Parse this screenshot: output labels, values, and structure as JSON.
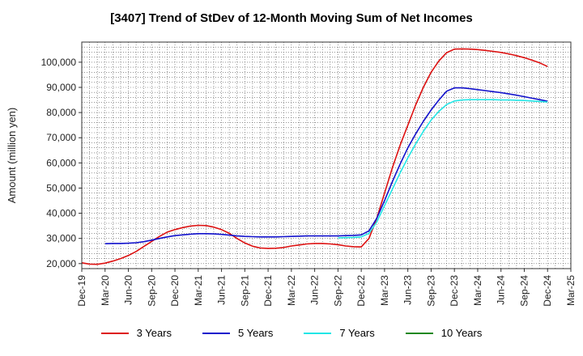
{
  "chart_data": {
    "type": "line",
    "title": "[3407]  Trend of StDev of 12-Month Moving Sum of Net Incomes",
    "xlabel": "",
    "ylabel": "Amount (million yen)",
    "x_ticks": [
      "Dec-19",
      "Mar-20",
      "Jun-20",
      "Sep-20",
      "Dec-20",
      "Mar-21",
      "Jun-21",
      "Sep-21",
      "Dec-21",
      "Mar-22",
      "Jun-22",
      "Sep-22",
      "Dec-22",
      "Mar-23",
      "Jun-23",
      "Sep-23",
      "Dec-23",
      "Mar-24",
      "Jun-24",
      "Sep-24",
      "Dec-24",
      "Mar-25"
    ],
    "y_ticks": [
      20000,
      30000,
      40000,
      50000,
      60000,
      70000,
      80000,
      90000,
      100000
    ],
    "y_tick_labels": [
      "20,000",
      "30,000",
      "40,000",
      "50,000",
      "60,000",
      "70,000",
      "80,000",
      "90,000",
      "100,000"
    ],
    "ylim": [
      18000,
      108000
    ],
    "grid": true,
    "legend_position": "bottom",
    "series": [
      {
        "name": "3 Years",
        "color": "#dd1111",
        "x": [
          "Dec-19",
          "Jan-20",
          "Feb-20",
          "Mar-20",
          "Apr-20",
          "May-20",
          "Jun-20",
          "Jul-20",
          "Aug-20",
          "Sep-20",
          "Oct-20",
          "Nov-20",
          "Dec-20",
          "Jan-21",
          "Feb-21",
          "Mar-21",
          "Apr-21",
          "May-21",
          "Jun-21",
          "Jul-21",
          "Aug-21",
          "Sep-21",
          "Oct-21",
          "Nov-21",
          "Dec-21",
          "Jan-22",
          "Feb-22",
          "Mar-22",
          "Apr-22",
          "May-22",
          "Jun-22",
          "Jul-22",
          "Aug-22",
          "Sep-22",
          "Oct-22",
          "Nov-22",
          "Dec-22",
          "Jan-23",
          "Feb-23",
          "Mar-23",
          "Apr-23",
          "May-23",
          "Jun-23",
          "Jul-23",
          "Aug-23",
          "Sep-23",
          "Oct-23",
          "Nov-23",
          "Dec-23",
          "Jan-24",
          "Feb-24",
          "Mar-24",
          "Apr-24",
          "May-24",
          "Jun-24",
          "Jul-24",
          "Aug-24",
          "Sep-24",
          "Oct-24",
          "Nov-24",
          "Dec-24"
        ],
        "values": [
          20300,
          19800,
          19700,
          20200,
          21000,
          22000,
          23200,
          24800,
          26800,
          28800,
          30800,
          32500,
          33500,
          34300,
          34900,
          35200,
          35100,
          34500,
          33500,
          32000,
          30000,
          28200,
          26900,
          26200,
          26000,
          26100,
          26400,
          27000,
          27400,
          27800,
          28000,
          28000,
          27800,
          27500,
          27000,
          26700,
          26600,
          30000,
          38000,
          48000,
          58000,
          67000,
          75000,
          83000,
          90000,
          96000,
          100500,
          103800,
          105200,
          105300,
          105200,
          105000,
          104700,
          104300,
          103900,
          103300,
          102600,
          101800,
          100800,
          99700,
          98300
        ]
      },
      {
        "name": "5 Years",
        "color": "#1111cc",
        "x": [
          "Mar-20",
          "Apr-20",
          "May-20",
          "Jun-20",
          "Jul-20",
          "Aug-20",
          "Sep-20",
          "Oct-20",
          "Nov-20",
          "Dec-20",
          "Jan-21",
          "Feb-21",
          "Mar-21",
          "Apr-21",
          "May-21",
          "Jun-21",
          "Jul-21",
          "Aug-21",
          "Sep-21",
          "Oct-21",
          "Nov-21",
          "Dec-21",
          "Jan-22",
          "Feb-22",
          "Mar-22",
          "Apr-22",
          "May-22",
          "Jun-22",
          "Jul-22",
          "Aug-22",
          "Sep-22",
          "Oct-22",
          "Nov-22",
          "Dec-22",
          "Jan-23",
          "Feb-23",
          "Mar-23",
          "Apr-23",
          "May-23",
          "Jun-23",
          "Jul-23",
          "Aug-23",
          "Sep-23",
          "Oct-23",
          "Nov-23",
          "Dec-23",
          "Jan-24",
          "Feb-24",
          "Mar-24",
          "Apr-24",
          "May-24",
          "Jun-24",
          "Jul-24",
          "Aug-24",
          "Sep-24",
          "Oct-24",
          "Nov-24",
          "Dec-24"
        ],
        "values": [
          27900,
          28000,
          28000,
          28100,
          28300,
          28700,
          29300,
          30000,
          30600,
          31100,
          31400,
          31700,
          31900,
          31900,
          31800,
          31600,
          31300,
          31000,
          30800,
          30700,
          30600,
          30600,
          30600,
          30700,
          30800,
          30900,
          31000,
          31000,
          31000,
          31000,
          31000,
          31100,
          31200,
          31400,
          33000,
          38000,
          45000,
          52500,
          59500,
          66000,
          71500,
          76500,
          81000,
          85000,
          88500,
          89800,
          89800,
          89500,
          89100,
          88700,
          88300,
          87900,
          87400,
          86900,
          86300,
          85700,
          85100,
          84500
        ]
      },
      {
        "name": "7 Years",
        "color": "#22e6e6",
        "x": [
          "Sep-22",
          "Oct-22",
          "Nov-22",
          "Dec-22",
          "Jan-23",
          "Feb-23",
          "Mar-23",
          "Apr-23",
          "May-23",
          "Jun-23",
          "Jul-23",
          "Aug-23",
          "Sep-23",
          "Oct-23",
          "Nov-23",
          "Dec-23",
          "Jan-24",
          "Feb-24",
          "Mar-24",
          "Apr-24",
          "May-24",
          "Jun-24",
          "Jul-24",
          "Aug-24",
          "Sep-24",
          "Oct-24",
          "Nov-24",
          "Dec-24"
        ],
        "values": [
          30200,
          30300,
          30400,
          30600,
          32000,
          36500,
          43000,
          49500,
          56000,
          62000,
          67500,
          72500,
          77000,
          80500,
          83200,
          84600,
          85000,
          85100,
          85100,
          85100,
          85100,
          85000,
          85000,
          84900,
          84800,
          84600,
          84400,
          84200
        ]
      },
      {
        "name": "10 Years",
        "color": "#228822",
        "x": [],
        "values": []
      }
    ]
  }
}
